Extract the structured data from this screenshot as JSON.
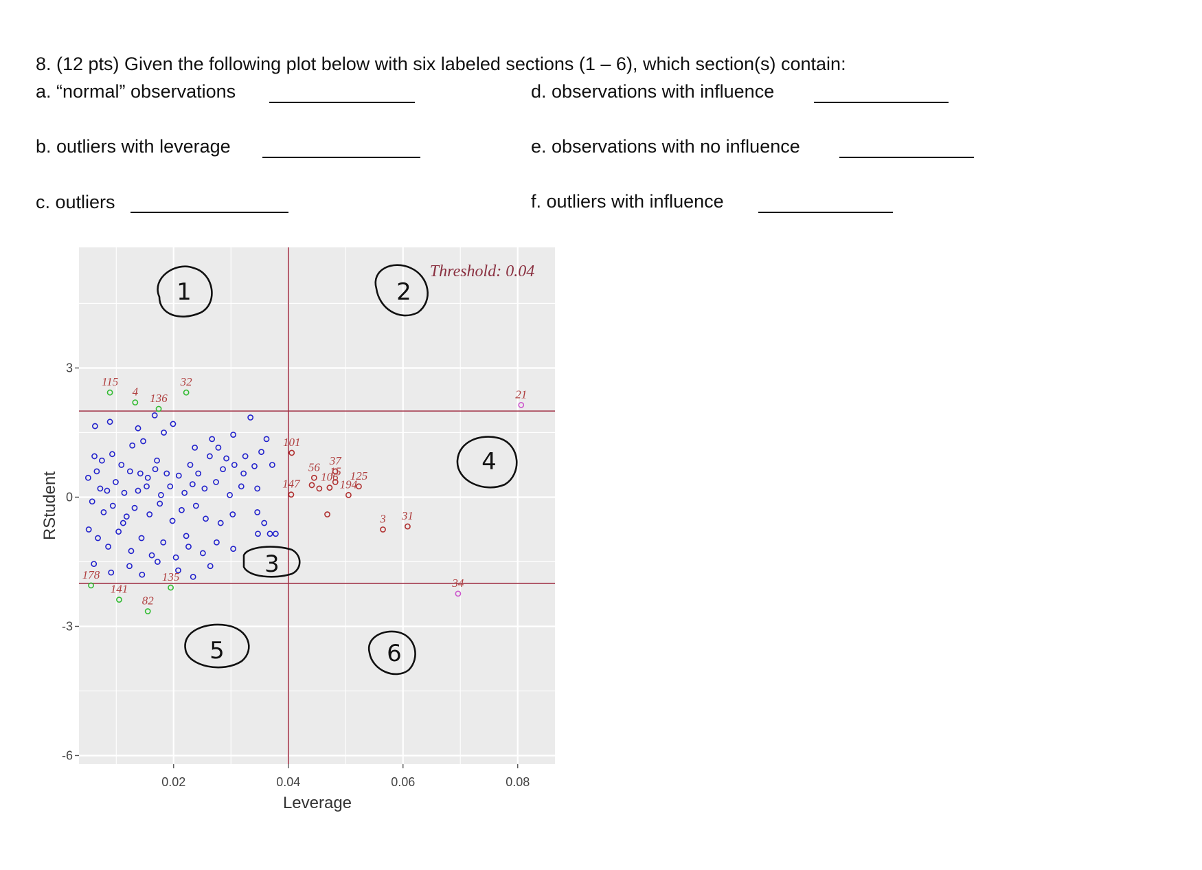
{
  "question": {
    "header": "8. (12 pts) Given the following plot below with six labeled sections (1 – 6), which section(s)  contain:",
    "items": {
      "a": "a. “normal” observations",
      "b": "b. outliers with leverage",
      "c": "c. outliers",
      "d": "d. observations with influence",
      "e": "e. observations with no influence",
      "f": "f. outliers with influence"
    }
  },
  "chart_data": {
    "type": "scatter",
    "title": "",
    "xlabel": "Leverage",
    "ylabel": "RStudent",
    "xlim": [
      0.0035,
      0.0865
    ],
    "ylim": [
      -6.2,
      5.8
    ],
    "xticks": [
      0.02,
      0.04,
      0.06,
      0.08
    ],
    "xtick_labels": [
      "0.02",
      "0.04",
      "0.06",
      "0.08"
    ],
    "yticks": [
      3,
      0,
      -3,
      -6
    ],
    "ytick_labels": [
      "3",
      "0",
      "-3",
      "-6"
    ],
    "threshold_annotation": "Threshold: 0.04",
    "reference_lines": {
      "leverage": 0.04,
      "rstudent": [
        2,
        -2
      ]
    },
    "grid": true,
    "colors": {
      "normal": "#2222cc",
      "outlier": "#33bb33",
      "leverage": "#b03030",
      "outlier_leverage": "#cc55cc",
      "reference": "#a03045",
      "panel": "#ebebeb"
    },
    "section_annotations": [
      "1",
      "2",
      "3",
      "4",
      "5",
      "6"
    ],
    "labeled_points": [
      {
        "label": "115",
        "x": 0.0089,
        "y": 2.43,
        "group": "outlier"
      },
      {
        "label": "4",
        "x": 0.0133,
        "y": 2.2,
        "group": "outlier"
      },
      {
        "label": "136",
        "x": 0.0174,
        "y": 2.05,
        "group": "outlier"
      },
      {
        "label": "32",
        "x": 0.0222,
        "y": 2.43,
        "group": "outlier"
      },
      {
        "label": "178",
        "x": 0.0056,
        "y": -2.05,
        "group": "outlier"
      },
      {
        "label": "141",
        "x": 0.0105,
        "y": -2.38,
        "group": "outlier"
      },
      {
        "label": "82",
        "x": 0.0155,
        "y": -2.65,
        "group": "outlier"
      },
      {
        "label": "135",
        "x": 0.0195,
        "y": -2.1,
        "group": "outlier"
      },
      {
        "label": "101",
        "x": 0.0406,
        "y": 1.03,
        "group": "leverage"
      },
      {
        "label": "147",
        "x": 0.0405,
        "y": 0.06,
        "group": "leverage"
      },
      {
        "label": "37",
        "x": 0.0482,
        "y": 0.6,
        "group": "leverage"
      },
      {
        "label": "56",
        "x": 0.0445,
        "y": 0.45,
        "group": "leverage"
      },
      {
        "label": "106",
        "x": 0.0472,
        "y": 0.22,
        "group": "leverage"
      },
      {
        "label": "15",
        "x": 0.0482,
        "y": 0.35,
        "group": "leverage"
      },
      {
        "label": "194",
        "x": 0.0505,
        "y": 0.05,
        "group": "leverage"
      },
      {
        "label": "125",
        "x": 0.0523,
        "y": 0.25,
        "group": "leverage"
      },
      {
        "label": "3",
        "x": 0.0565,
        "y": -0.75,
        "group": "leverage"
      },
      {
        "label": "31",
        "x": 0.0608,
        "y": -0.68,
        "group": "leverage"
      },
      {
        "label": "21",
        "x": 0.0806,
        "y": 2.14,
        "group": "outlier_leverage"
      },
      {
        "label": "34",
        "x": 0.0696,
        "y": -2.24,
        "group": "outlier_leverage"
      }
    ],
    "unlabeled_leverage_points": [
      {
        "x": 0.0441,
        "y": 0.28
      },
      {
        "x": 0.0454,
        "y": 0.2
      },
      {
        "x": 0.0468,
        "y": -0.4
      }
    ],
    "normal_points": [
      {
        "x": 0.0063,
        "y": 1.65
      },
      {
        "x": 0.0089,
        "y": 1.75
      },
      {
        "x": 0.0128,
        "y": 1.2
      },
      {
        "x": 0.0138,
        "y": 1.6
      },
      {
        "x": 0.0147,
        "y": 1.3
      },
      {
        "x": 0.0167,
        "y": 1.9
      },
      {
        "x": 0.0183,
        "y": 1.5
      },
      {
        "x": 0.0199,
        "y": 1.7
      },
      {
        "x": 0.0237,
        "y": 1.15
      },
      {
        "x": 0.0267,
        "y": 1.35
      },
      {
        "x": 0.0278,
        "y": 1.15
      },
      {
        "x": 0.0304,
        "y": 1.45
      },
      {
        "x": 0.0334,
        "y": 1.85
      },
      {
        "x": 0.0325,
        "y": 0.95
      },
      {
        "x": 0.0353,
        "y": 1.05
      },
      {
        "x": 0.0372,
        "y": 0.75
      },
      {
        "x": 0.0341,
        "y": 0.72
      },
      {
        "x": 0.0362,
        "y": 1.35
      },
      {
        "x": 0.0062,
        "y": 0.95
      },
      {
        "x": 0.0075,
        "y": 0.85
      },
      {
        "x": 0.0093,
        "y": 1.0
      },
      {
        "x": 0.0109,
        "y": 0.75
      },
      {
        "x": 0.0124,
        "y": 0.6
      },
      {
        "x": 0.0142,
        "y": 0.55
      },
      {
        "x": 0.0155,
        "y": 0.45
      },
      {
        "x": 0.0168,
        "y": 0.65
      },
      {
        "x": 0.0188,
        "y": 0.55
      },
      {
        "x": 0.0209,
        "y": 0.5
      },
      {
        "x": 0.0229,
        "y": 0.75
      },
      {
        "x": 0.0243,
        "y": 0.55
      },
      {
        "x": 0.0263,
        "y": 0.95
      },
      {
        "x": 0.0286,
        "y": 0.65
      },
      {
        "x": 0.0306,
        "y": 0.75
      },
      {
        "x": 0.0322,
        "y": 0.55
      },
      {
        "x": 0.0051,
        "y": 0.45
      },
      {
        "x": 0.0066,
        "y": 0.6
      },
      {
        "x": 0.0084,
        "y": 0.15
      },
      {
        "x": 0.0099,
        "y": 0.35
      },
      {
        "x": 0.0114,
        "y": 0.1
      },
      {
        "x": 0.0138,
        "y": 0.15
      },
      {
        "x": 0.0153,
        "y": 0.25
      },
      {
        "x": 0.0178,
        "y": 0.05
      },
      {
        "x": 0.0194,
        "y": 0.25
      },
      {
        "x": 0.0219,
        "y": 0.1
      },
      {
        "x": 0.0233,
        "y": 0.3
      },
      {
        "x": 0.0254,
        "y": 0.2
      },
      {
        "x": 0.0274,
        "y": 0.35
      },
      {
        "x": 0.0298,
        "y": 0.05
      },
      {
        "x": 0.0318,
        "y": 0.25
      },
      {
        "x": 0.0346,
        "y": 0.2
      },
      {
        "x": 0.0058,
        "y": -0.1
      },
      {
        "x": 0.0078,
        "y": -0.35
      },
      {
        "x": 0.0094,
        "y": -0.2
      },
      {
        "x": 0.0118,
        "y": -0.45
      },
      {
        "x": 0.0132,
        "y": -0.25
      },
      {
        "x": 0.0158,
        "y": -0.4
      },
      {
        "x": 0.0176,
        "y": -0.15
      },
      {
        "x": 0.0198,
        "y": -0.55
      },
      {
        "x": 0.0214,
        "y": -0.3
      },
      {
        "x": 0.0239,
        "y": -0.2
      },
      {
        "x": 0.0256,
        "y": -0.5
      },
      {
        "x": 0.0282,
        "y": -0.6
      },
      {
        "x": 0.0303,
        "y": -0.4
      },
      {
        "x": 0.0346,
        "y": -0.35
      },
      {
        "x": 0.0358,
        "y": -0.6
      },
      {
        "x": 0.0378,
        "y": -0.85
      },
      {
        "x": 0.0052,
        "y": -0.75
      },
      {
        "x": 0.0068,
        "y": -0.95
      },
      {
        "x": 0.0086,
        "y": -1.15
      },
      {
        "x": 0.0104,
        "y": -0.8
      },
      {
        "x": 0.0126,
        "y": -1.25
      },
      {
        "x": 0.0144,
        "y": -0.95
      },
      {
        "x": 0.0162,
        "y": -1.35
      },
      {
        "x": 0.0182,
        "y": -1.05
      },
      {
        "x": 0.0204,
        "y": -1.4
      },
      {
        "x": 0.0226,
        "y": -1.15
      },
      {
        "x": 0.0251,
        "y": -1.3
      },
      {
        "x": 0.0275,
        "y": -1.05
      },
      {
        "x": 0.0304,
        "y": -1.2
      },
      {
        "x": 0.0347,
        "y": -0.85
      },
      {
        "x": 0.0368,
        "y": -0.85
      },
      {
        "x": 0.0061,
        "y": -1.55
      },
      {
        "x": 0.0091,
        "y": -1.75
      },
      {
        "x": 0.0123,
        "y": -1.6
      },
      {
        "x": 0.0145,
        "y": -1.8
      },
      {
        "x": 0.0172,
        "y": -1.5
      },
      {
        "x": 0.0208,
        "y": -1.7
      },
      {
        "x": 0.0234,
        "y": -1.85
      },
      {
        "x": 0.0264,
        "y": -1.6
      },
      {
        "x": 0.0072,
        "y": 0.2
      },
      {
        "x": 0.0112,
        "y": -0.6
      },
      {
        "x": 0.0171,
        "y": 0.85
      },
      {
        "x": 0.0222,
        "y": -0.9
      },
      {
        "x": 0.0292,
        "y": 0.9
      }
    ]
  }
}
